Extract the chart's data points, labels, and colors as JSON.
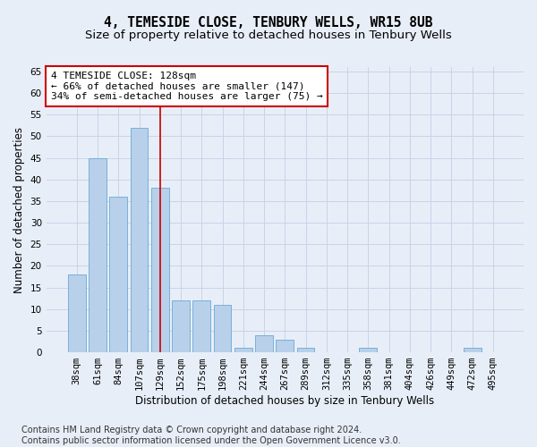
{
  "title": "4, TEMESIDE CLOSE, TENBURY WELLS, WR15 8UB",
  "subtitle": "Size of property relative to detached houses in Tenbury Wells",
  "xlabel": "Distribution of detached houses by size in Tenbury Wells",
  "ylabel": "Number of detached properties",
  "categories": [
    "38sqm",
    "61sqm",
    "84sqm",
    "107sqm",
    "129sqm",
    "152sqm",
    "175sqm",
    "198sqm",
    "221sqm",
    "244sqm",
    "267sqm",
    "289sqm",
    "312sqm",
    "335sqm",
    "358sqm",
    "381sqm",
    "404sqm",
    "426sqm",
    "449sqm",
    "472sqm",
    "495sqm"
  ],
  "values": [
    18,
    45,
    36,
    52,
    38,
    12,
    12,
    11,
    1,
    4,
    3,
    1,
    0,
    0,
    1,
    0,
    0,
    0,
    0,
    1,
    0
  ],
  "bar_color": "#b8d0ea",
  "bar_edge_color": "#6aaad4",
  "grid_color": "#c8d4e8",
  "background_color": "#e8eef8",
  "vline_x_index": 4,
  "vline_color": "#cc0000",
  "annotation_line1": "4 TEMESIDE CLOSE: 128sqm",
  "annotation_line2": "← 66% of detached houses are smaller (147)",
  "annotation_line3": "34% of semi-detached houses are larger (75) →",
  "annotation_box_color": "#ffffff",
  "annotation_box_edge_color": "#cc0000",
  "ylim": [
    0,
    66
  ],
  "yticks": [
    0,
    5,
    10,
    15,
    20,
    25,
    30,
    35,
    40,
    45,
    50,
    55,
    60,
    65
  ],
  "title_fontsize": 10.5,
  "subtitle_fontsize": 9.5,
  "xlabel_fontsize": 8.5,
  "ylabel_fontsize": 8.5,
  "tick_fontsize": 7.5,
  "annotation_fontsize": 8,
  "footer_text": "Contains HM Land Registry data © Crown copyright and database right 2024.\nContains public sector information licensed under the Open Government Licence v3.0.",
  "footer_fontsize": 7
}
